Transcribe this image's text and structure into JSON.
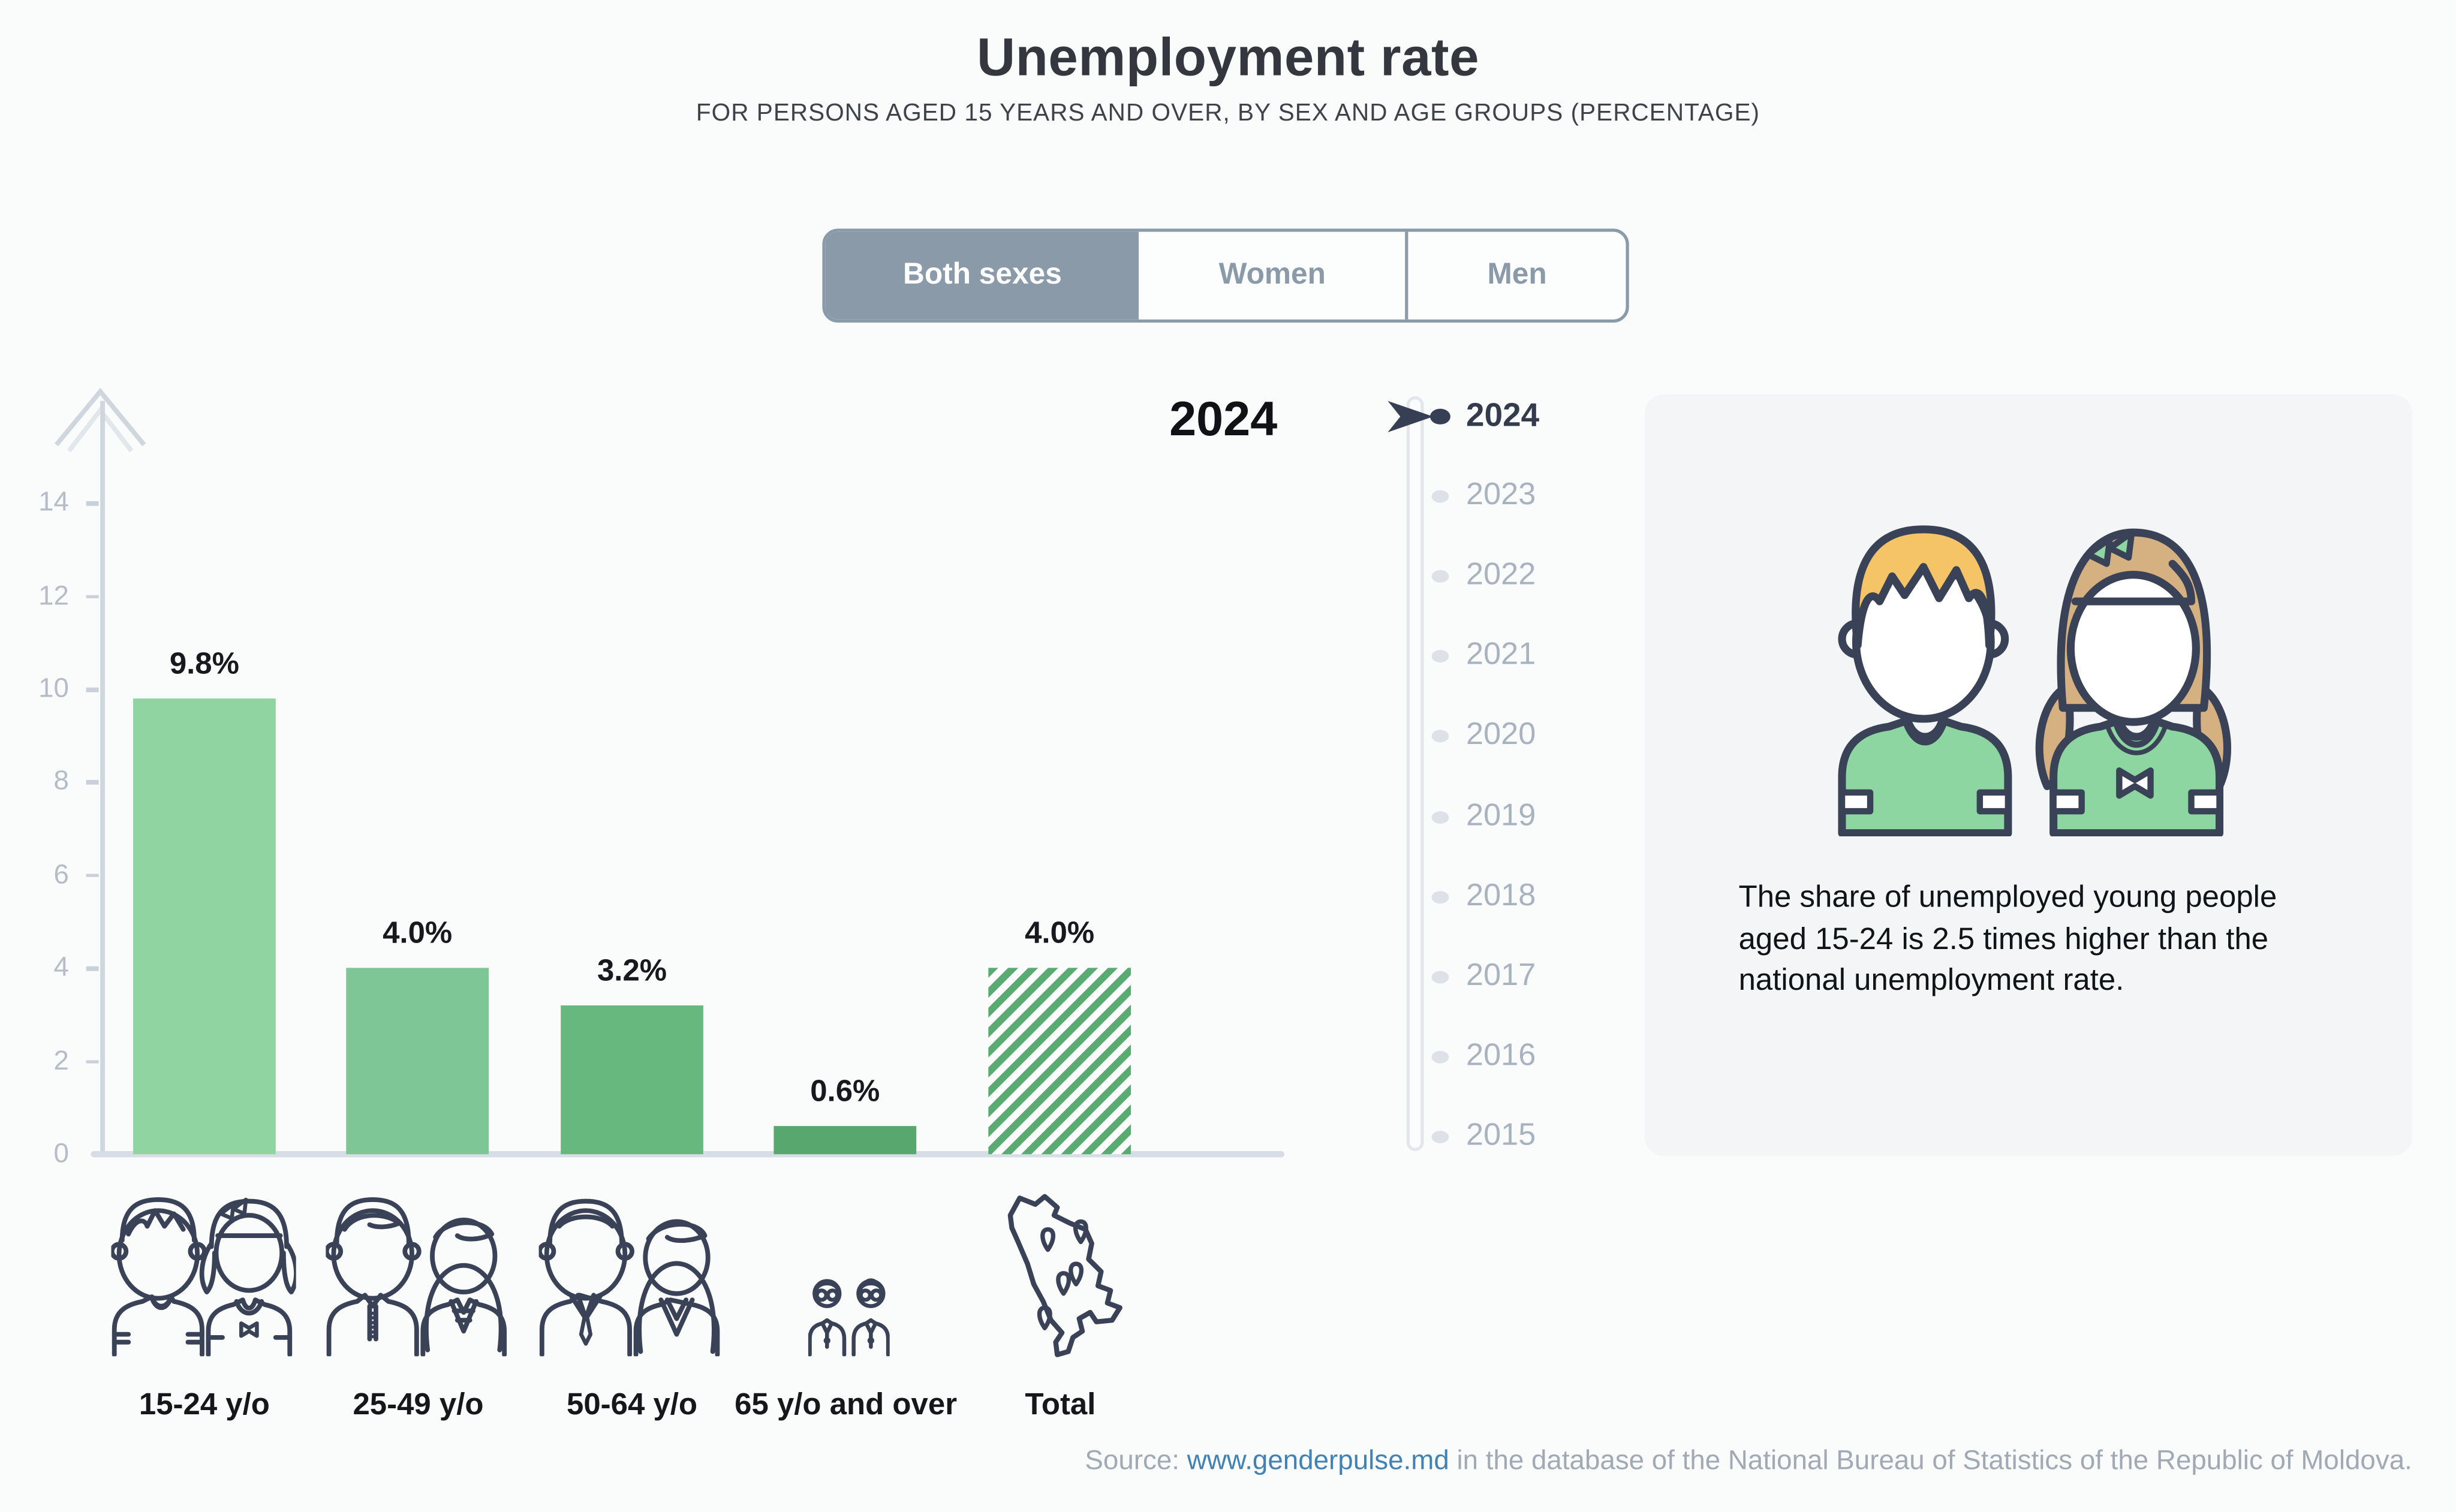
{
  "app": {
    "background_color": "#fafbfb"
  },
  "header": {
    "title": "Unemployment rate",
    "subtitle": "FOR PERSONS AGED 15 YEARS AND OVER, BY SEX AND AGE GROUPS (PERCENTAGE)"
  },
  "tabs": {
    "accent_color": "#8b9aa8",
    "items": [
      {
        "label": "Both sexes",
        "selected": true
      },
      {
        "label": "Women",
        "selected": false
      },
      {
        "label": "Men",
        "selected": false
      }
    ]
  },
  "chart_data": {
    "type": "bar",
    "year_label": "2024",
    "categories": [
      "15-24 y/o",
      "25-49 y/o",
      "50-64 y/o",
      "65 y/o and over",
      "Total"
    ],
    "values": [
      9.8,
      4.0,
      3.2,
      0.6,
      4.0
    ],
    "value_labels": [
      "9.8%",
      "4.0%",
      "3.2%",
      "0.6%",
      "4.0%"
    ],
    "yticks": [
      0,
      2,
      4,
      6,
      8,
      10,
      12,
      14
    ],
    "ylim": [
      0,
      15
    ],
    "grid": false,
    "bar_colors": [
      "#90d5a1",
      "#7ec696",
      "#66b87e",
      "#57a76e",
      "#5aab72"
    ],
    "total_bar_style": "diagonal-hatch",
    "category_icons": [
      "young-pair-icon",
      "adult-pair-icon",
      "mature-pair-icon",
      "elderly-pair-icon",
      "moldova-map-icon"
    ]
  },
  "year_slider": {
    "selected": "2024",
    "years": [
      "2024",
      "2023",
      "2022",
      "2021",
      "2020",
      "2019",
      "2018",
      "2017",
      "2016",
      "2015"
    ]
  },
  "info_card": {
    "background_color": "#f3f5f7",
    "illustration": "boy-and-girl-icon",
    "text": "The share of unemployed young people aged 15-24 is 2.5 times higher than the national unemployment rate."
  },
  "source": {
    "prefix": "Source: ",
    "link_text": "www.genderpulse.md",
    "suffix": " in the database of the National Bureau of Statistics of the Republic of Moldova.",
    "link_color": "#4281b4"
  }
}
